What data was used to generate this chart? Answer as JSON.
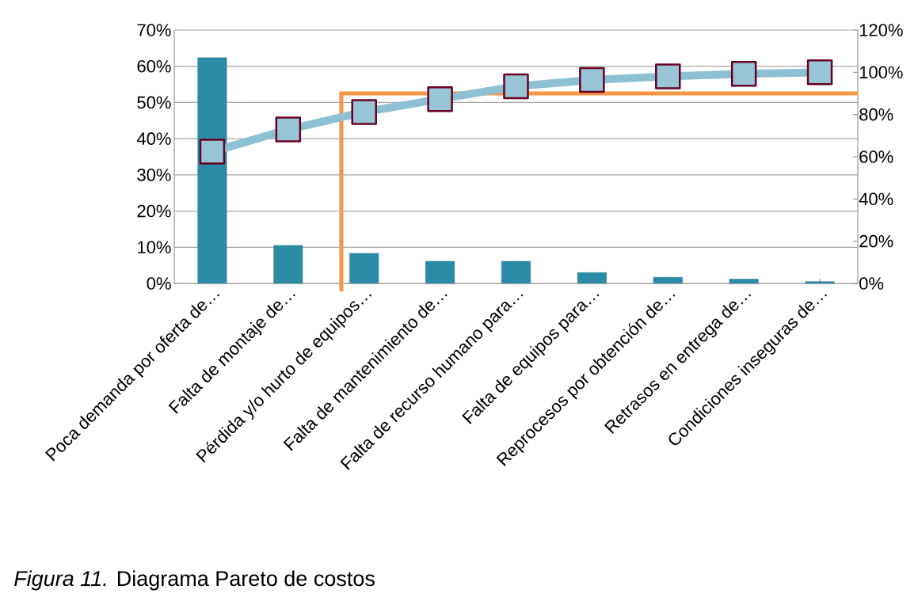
{
  "chart_data": {
    "type": "bar",
    "categories": [
      "Poca demanda por oferta de…",
      "Falta de montaje de…",
      "Pérdida y/o hurto de equipos…",
      "Falta de mantenimiento de…",
      "Falta de recurso humano para…",
      "Falta de equipos para…",
      "Reprocesos por obtención de…",
      "Retrasos en entrega de…",
      "Condiciones inseguras de…"
    ],
    "series": [
      {
        "color": "#2a8ca6",
        "values": [
          62.4,
          10.5,
          8.3,
          6.1,
          6.1,
          3.0,
          1.7,
          1.2,
          0.5
        ]
      },
      {
        "type": "line",
        "axis": "y2",
        "color": "#8dc0d3",
        "values": [
          62.4,
          72.9,
          81.2,
          87.3,
          93.4,
          96.4,
          98.1,
          99.3,
          100
        ]
      }
    ],
    "ylim": [
      0,
      70
    ],
    "yticks": [
      {
        "value": 0,
        "label": "0%"
      },
      {
        "value": 10,
        "label": "10%"
      },
      {
        "value": 20,
        "label": "20%"
      },
      {
        "value": 30,
        "label": "30%"
      },
      {
        "value": 40,
        "label": "40%"
      },
      {
        "value": 50,
        "label": "50%"
      },
      {
        "value": 60,
        "label": "60%"
      },
      {
        "value": 70,
        "label": "70%"
      }
    ],
    "y2lim": [
      0,
      120
    ],
    "y2ticks": [
      {
        "value": 0,
        "label": "0%"
      },
      {
        "value": 20,
        "label": "20%"
      },
      {
        "value": 40,
        "label": "40%"
      },
      {
        "value": 60,
        "label": "60%"
      },
      {
        "value": 80,
        "label": "80%"
      },
      {
        "value": 100,
        "label": "100%"
      },
      {
        "value": 120,
        "label": "120%"
      }
    ],
    "grid": "y",
    "marker": "square",
    "ref_lines": [
      {
        "axis": "y2",
        "value": 90,
        "color": "#f79646"
      }
    ],
    "annotations": [
      "*Figura 11.* Diagrama Pareto de costos"
    ]
  }
}
